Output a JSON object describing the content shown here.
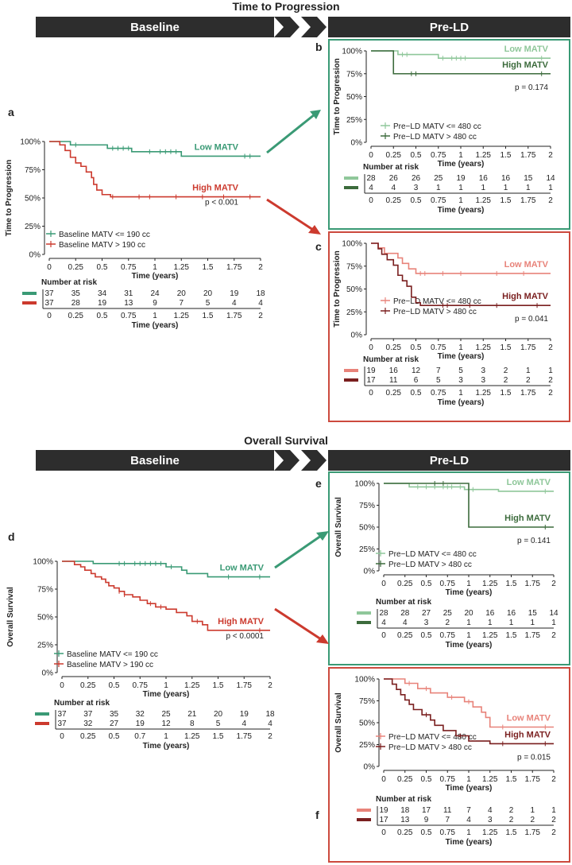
{
  "tp_title": "Time to Progression",
  "os_title": "Overall Survival",
  "banner_baseline": "Baseline",
  "banner_preld": "Pre-LD",
  "colors": {
    "green": "#3a9a75",
    "red": "#cc3a2e",
    "lightgreen": "#8fc79a",
    "darkgreen": "#3c6b3c",
    "lightred": "#e8837a",
    "darkred": "#7a1f1f",
    "green_box": "#3a9a75",
    "red_box": "#cc4a3e"
  },
  "xticks": [
    "0",
    "0.25",
    "0.5",
    "0.75",
    "1",
    "1.25",
    "1.5",
    "1.75",
    "2"
  ],
  "xticks_risk_d": [
    "0",
    "0.25",
    "0.5",
    "0.7",
    "1",
    "1.25",
    "1.5",
    "1.75",
    "2"
  ],
  "yticks": [
    "0%",
    "25%",
    "50%",
    "75%",
    "100%"
  ],
  "chart_data": [
    {
      "panel": "a",
      "type": "line",
      "ylabel": "Time to Progression",
      "xlabel": "Time (years)",
      "pvalue": "p < 0.001",
      "risk_title": "Number at risk",
      "risk_xlabel": "Time (years)",
      "series": [
        {
          "name": "Baseline MATV <= 190 cc",
          "label": "Low MATV",
          "color": "#3a9a75",
          "steps": [
            [
              0,
              1
            ],
            [
              0.2,
              0.97
            ],
            [
              0.55,
              0.94
            ],
            [
              0.78,
              0.91
            ],
            [
              1.25,
              0.87
            ],
            [
              2,
              0.87
            ]
          ],
          "censor": [
            0.25,
            0.6,
            0.65,
            0.7,
            0.75,
            0.95,
            1.05,
            1.1,
            1.15,
            1.2,
            1.85,
            1.9
          ],
          "risk": [
            "37",
            "35",
            "34",
            "31",
            "24",
            "20",
            "20",
            "19",
            "18"
          ]
        },
        {
          "name": "Baseline MATV > 190 cc",
          "label": "High MATV",
          "color": "#cc3a2e",
          "steps": [
            [
              0,
              1
            ],
            [
              0.1,
              0.97
            ],
            [
              0.15,
              0.92
            ],
            [
              0.2,
              0.86
            ],
            [
              0.25,
              0.81
            ],
            [
              0.3,
              0.78
            ],
            [
              0.35,
              0.73
            ],
            [
              0.4,
              0.68
            ],
            [
              0.42,
              0.62
            ],
            [
              0.45,
              0.57
            ],
            [
              0.5,
              0.53
            ],
            [
              0.58,
              0.51
            ],
            [
              2,
              0.51
            ]
          ],
          "censor": [
            0.6,
            0.85,
            0.95,
            1.2,
            1.45,
            1.65,
            1.9
          ],
          "risk": [
            "37",
            "28",
            "19",
            "13",
            "9",
            "7",
            "5",
            "4",
            "4"
          ]
        }
      ]
    },
    {
      "panel": "b",
      "type": "line",
      "ylabel": "Time  to Progression",
      "xlabel": "Time (years)",
      "pvalue": "p = 0.174",
      "risk_title": "Number at risk",
      "risk_xlabel": "Time (years)",
      "series": [
        {
          "name": "Pre−LD MATV <= 480 cc",
          "label": "Low MATV",
          "color": "#8fc79a",
          "steps": [
            [
              0,
              1
            ],
            [
              0.3,
              0.96
            ],
            [
              0.75,
              0.92
            ],
            [
              2,
              0.92
            ]
          ],
          "censor": [
            0.35,
            0.4,
            0.8,
            0.9,
            0.95,
            1.0,
            1.05,
            1.9
          ],
          "risk": [
            "28",
            "26",
            "26",
            "25",
            "19",
            "16",
            "16",
            "15",
            "14"
          ]
        },
        {
          "name": "Pre−LD MATV > 480 cc",
          "label": "High MATV",
          "color": "#3c6b3c",
          "steps": [
            [
              0,
              1
            ],
            [
              0.25,
              0.75
            ],
            [
              2,
              0.75
            ]
          ],
          "censor": [
            0.45,
            0.5,
            1.9
          ],
          "risk": [
            "4",
            "4",
            "3",
            "1",
            "1",
            "1",
            "1",
            "1",
            "1"
          ]
        }
      ]
    },
    {
      "panel": "c",
      "type": "line",
      "ylabel": "Time to Progression",
      "xlabel": "Time (years)",
      "pvalue": "p = 0.041",
      "risk_title": "Number at risk",
      "risk_xlabel": "Time (years)",
      "series": [
        {
          "name": "Pre−LD MATV <= 480 cc",
          "label": "Low MATV",
          "color": "#e8837a",
          "steps": [
            [
              0,
              1
            ],
            [
              0.08,
              0.95
            ],
            [
              0.15,
              0.89
            ],
            [
              0.3,
              0.84
            ],
            [
              0.35,
              0.78
            ],
            [
              0.42,
              0.72
            ],
            [
              0.5,
              0.67
            ],
            [
              2,
              0.67
            ]
          ],
          "censor": [
            0.55,
            0.6,
            0.8,
            1.0,
            1.4,
            1.7
          ],
          "risk": [
            "19",
            "16",
            "12",
            "7",
            "5",
            "3",
            "2",
            "1",
            "1"
          ]
        },
        {
          "name": "Pre−LD MATV > 480 cc",
          "label": "High MATV",
          "color": "#7a1f1f",
          "steps": [
            [
              0,
              1
            ],
            [
              0.08,
              0.94
            ],
            [
              0.12,
              0.88
            ],
            [
              0.18,
              0.82
            ],
            [
              0.25,
              0.76
            ],
            [
              0.3,
              0.65
            ],
            [
              0.35,
              0.59
            ],
            [
              0.4,
              0.53
            ],
            [
              0.45,
              0.41
            ],
            [
              0.5,
              0.35
            ],
            [
              0.55,
              0.32
            ],
            [
              2,
              0.32
            ]
          ],
          "censor": [
            0.8,
            0.85,
            1.1,
            1.4,
            1.85
          ],
          "risk": [
            "17",
            "11",
            "6",
            "5",
            "3",
            "3",
            "2",
            "2",
            "2"
          ]
        }
      ]
    },
    {
      "panel": "d",
      "type": "line",
      "ylabel": "Overall Survival",
      "xlabel": "Time (years)",
      "pvalue": "p < 0.0001",
      "risk_title": "Number at risk",
      "risk_xlabel": "Time (years)",
      "series": [
        {
          "name": "Baseline MATV <= 190 cc",
          "label": "Low MATV",
          "color": "#3a9a75",
          "steps": [
            [
              0,
              1
            ],
            [
              0.3,
              0.98
            ],
            [
              1.0,
              0.95
            ],
            [
              1.15,
              0.92
            ],
            [
              1.2,
              0.89
            ],
            [
              1.4,
              0.86
            ],
            [
              2,
              0.86
            ]
          ],
          "censor": [
            0.55,
            0.6,
            0.7,
            0.75,
            0.8,
            0.85,
            0.9,
            0.95,
            1.05,
            1.6,
            1.9
          ],
          "risk": [
            "37",
            "37",
            "35",
            "32",
            "25",
            "21",
            "20",
            "19",
            "18"
          ]
        },
        {
          "name": "Baseline MATV > 190 cc",
          "label": "High MATV",
          "color": "#cc3a2e",
          "steps": [
            [
              0,
              1
            ],
            [
              0.12,
              0.97
            ],
            [
              0.18,
              0.95
            ],
            [
              0.22,
              0.92
            ],
            [
              0.28,
              0.89
            ],
            [
              0.32,
              0.86
            ],
            [
              0.38,
              0.84
            ],
            [
              0.42,
              0.81
            ],
            [
              0.45,
              0.78
            ],
            [
              0.5,
              0.76
            ],
            [
              0.55,
              0.73
            ],
            [
              0.6,
              0.7
            ],
            [
              0.68,
              0.68
            ],
            [
              0.75,
              0.65
            ],
            [
              0.82,
              0.62
            ],
            [
              0.9,
              0.59
            ],
            [
              1.0,
              0.57
            ],
            [
              1.1,
              0.54
            ],
            [
              1.2,
              0.51
            ],
            [
              1.25,
              0.46
            ],
            [
              1.35,
              0.43
            ],
            [
              1.4,
              0.38
            ],
            [
              2,
              0.38
            ]
          ],
          "censor": [
            0.55,
            0.6,
            0.85,
            0.95,
            1.3,
            1.9
          ],
          "risk": [
            "37",
            "32",
            "27",
            "19",
            "12",
            "8",
            "5",
            "4",
            "4"
          ]
        }
      ]
    },
    {
      "panel": "e",
      "type": "line",
      "ylabel": "Overall Survival",
      "xlabel": "Time (years)",
      "pvalue": "p = 0.141",
      "risk_title": "Number at risk",
      "risk_xlabel": "Time (years)",
      "series": [
        {
          "name": "Pre−LD MATV <= 480 cc",
          "label": "Low MATV",
          "color": "#8fc79a",
          "steps": [
            [
              0,
              1
            ],
            [
              0.3,
              0.96
            ],
            [
              0.95,
              0.93
            ],
            [
              1.35,
              0.91
            ],
            [
              2,
              0.91
            ]
          ],
          "censor": [
            0.4,
            0.5,
            0.6,
            0.7,
            0.75,
            0.8,
            0.9,
            1.0,
            1.05,
            1.9
          ],
          "risk": [
            "28",
            "28",
            "27",
            "25",
            "20",
            "16",
            "16",
            "15",
            "14"
          ]
        },
        {
          "name": "Pre−LD MATV > 480 cc",
          "label": "High MATV",
          "color": "#3c6b3c",
          "steps": [
            [
              0,
              1
            ],
            [
              0.95,
              1
            ],
            [
              1.0,
              0.5
            ],
            [
              2,
              0.5
            ]
          ],
          "censor": [
            0.6,
            0.7,
            1.9
          ],
          "risk": [
            "4",
            "4",
            "3",
            "2",
            "1",
            "1",
            "1",
            "1",
            "1"
          ]
        }
      ]
    },
    {
      "panel": "f",
      "type": "line",
      "ylabel": "Overall Survival",
      "xlabel": "Time (years)",
      "pvalue": "p = 0.015",
      "risk_title": "Number at risk",
      "risk_xlabel": "Time (years)",
      "series": [
        {
          "name": "Pre−LD MATV <= 480 cc",
          "label": "Low MATV",
          "color": "#e8837a",
          "steps": [
            [
              0,
              1
            ],
            [
              0.25,
              0.95
            ],
            [
              0.4,
              0.89
            ],
            [
              0.55,
              0.84
            ],
            [
              0.75,
              0.79
            ],
            [
              0.95,
              0.74
            ],
            [
              1.05,
              0.68
            ],
            [
              1.15,
              0.62
            ],
            [
              1.2,
              0.56
            ],
            [
              1.25,
              0.45
            ],
            [
              2,
              0.45
            ]
          ],
          "censor": [
            0.3,
            0.5,
            0.8,
            1.0,
            1.4,
            1.9
          ],
          "risk": [
            "19",
            "18",
            "17",
            "11",
            "7",
            "4",
            "2",
            "1",
            "1"
          ]
        },
        {
          "name": "Pre−LD MATV > 480 cc",
          "label": "High MATV",
          "color": "#7a1f1f",
          "steps": [
            [
              0,
              1
            ],
            [
              0.1,
              0.94
            ],
            [
              0.15,
              0.88
            ],
            [
              0.2,
              0.82
            ],
            [
              0.25,
              0.76
            ],
            [
              0.3,
              0.71
            ],
            [
              0.35,
              0.65
            ],
            [
              0.45,
              0.59
            ],
            [
              0.55,
              0.53
            ],
            [
              0.6,
              0.47
            ],
            [
              0.7,
              0.41
            ],
            [
              0.85,
              0.35
            ],
            [
              1.0,
              0.29
            ],
            [
              1.25,
              0.26
            ],
            [
              2,
              0.26
            ]
          ],
          "censor": [
            0.5,
            0.9,
            1.4,
            1.9
          ],
          "risk": [
            "17",
            "13",
            "9",
            "7",
            "4",
            "3",
            "2",
            "2",
            "2"
          ]
        }
      ]
    }
  ]
}
